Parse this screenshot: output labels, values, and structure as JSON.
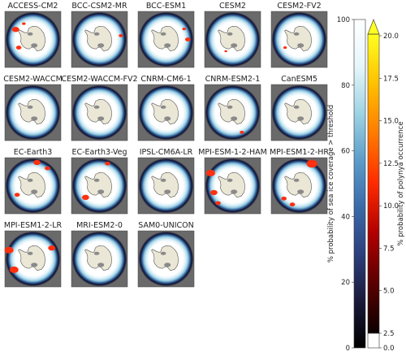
{
  "chart_data": {
    "type": "heatmap",
    "panels": [
      {
        "title": "ACCESS-CM2",
        "polynya": [
          {
            "lon": 300,
            "lat": -68,
            "s": 2
          },
          {
            "lon": 240,
            "lat": -72,
            "s": 1.5
          },
          {
            "lon": 330,
            "lat": -70,
            "s": 1
          }
        ]
      },
      {
        "title": "BCC-CSM2-MR",
        "polynya": [
          {
            "lon": 80,
            "lat": -66,
            "s": 1.2
          }
        ]
      },
      {
        "title": "BCC-ESM1",
        "polynya": [
          {
            "lon": 90,
            "lat": -66,
            "s": 1.5
          },
          {
            "lon": 60,
            "lat": -67,
            "s": 1
          }
        ]
      },
      {
        "title": "CESM2",
        "polynya": [
          {
            "lon": 210,
            "lat": -75,
            "s": 0.8
          }
        ]
      },
      {
        "title": "CESM2-FV2",
        "polynya": [
          {
            "lon": 240,
            "lat": -72,
            "s": 1
          }
        ]
      },
      {
        "title": "CESM2-WACCM",
        "polynya": []
      },
      {
        "title": "CESM2-WACCM-FV2",
        "polynya": []
      },
      {
        "title": "CNRM-CM6-1",
        "polynya": []
      },
      {
        "title": "CNRM-ESM2-1",
        "polynya": [
          {
            "lon": 155,
            "lat": -66,
            "s": 1.2
          }
        ]
      },
      {
        "title": "CanESM5",
        "polynya": []
      },
      {
        "title": "EC-Earth3",
        "polynya": [
          {
            "lon": 10,
            "lat": -64,
            "s": 2
          },
          {
            "lon": 40,
            "lat": -65,
            "s": 1.5
          },
          {
            "lon": 240,
            "lat": -70,
            "s": 1.5
          }
        ]
      },
      {
        "title": "EC-Earth3-Veg",
        "polynya": [
          {
            "lon": 20,
            "lat": -64,
            "s": 1.5
          },
          {
            "lon": 230,
            "lat": -70,
            "s": 2
          }
        ]
      },
      {
        "title": "IPSL-CM6A-LR",
        "polynya": []
      },
      {
        "title": "MPI-ESM-1-2-HAM",
        "polynya": [
          {
            "lon": 300,
            "lat": -62,
            "s": 2.5
          },
          {
            "lon": 250,
            "lat": -68,
            "s": 2
          },
          {
            "lon": 220,
            "lat": -65,
            "s": 1.5
          }
        ]
      },
      {
        "title": "MPI-ESM1-2-HR",
        "polynya": [
          {
            "lon": 30,
            "lat": -62,
            "s": 3
          },
          {
            "lon": 200,
            "lat": -68,
            "s": 1.5
          },
          {
            "lon": 230,
            "lat": -68,
            "s": 1.5
          }
        ]
      },
      {
        "title": "MPI-ESM1-2-LR",
        "polynya": [
          {
            "lon": 290,
            "lat": -62,
            "s": 2.5
          },
          {
            "lon": 240,
            "lat": -66,
            "s": 2.5
          },
          {
            "lon": 60,
            "lat": -66,
            "s": 2
          }
        ]
      },
      {
        "title": "MRI-ESM2-0",
        "polynya": []
      },
      {
        "title": "SAM0-UNICON",
        "polynya": []
      }
    ],
    "colorbars": [
      {
        "name": "sea-ice",
        "label": "% probability of sea ice coverage > threshold",
        "range": [
          0,
          100
        ],
        "ticks": [
          0,
          20,
          40,
          60,
          80,
          100
        ],
        "colors": [
          "#000000",
          "#1a1a3a",
          "#2c3f7c",
          "#3b6aa8",
          "#5c9cc9",
          "#9fd3e3",
          "#e6f6fa",
          "#ffffff"
        ]
      },
      {
        "name": "polynya",
        "label": "% probability of polynya occurrence",
        "range": [
          0.0,
          20.0
        ],
        "ticks": [
          "0.0",
          "2.5",
          "5.0",
          "7.5",
          "10.0",
          "12.5",
          "15.0",
          "17.5",
          "20.0"
        ],
        "extend": "max",
        "colors": [
          "#0a0000",
          "#5a0000",
          "#b00000",
          "#ff2a00",
          "#ff7a00",
          "#ffc000",
          "#ffff20"
        ],
        "under_color": "#ffffff"
      }
    ],
    "colors": {
      "ocean": "#6a6a6a",
      "land": "#ebe7d6",
      "ice": "#ffffff",
      "shelf": "#8a8a8a",
      "polynya": "#ff3010"
    }
  }
}
